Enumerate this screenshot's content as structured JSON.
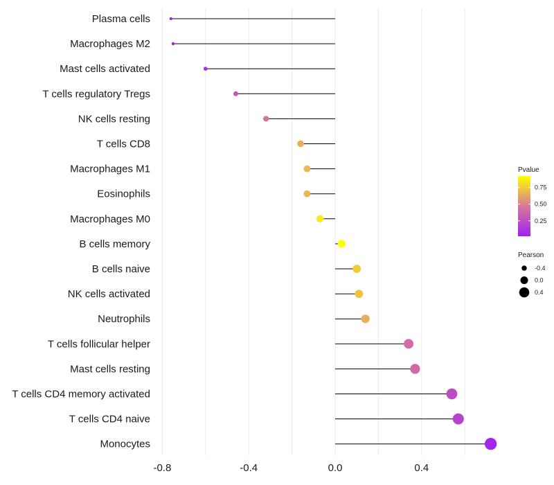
{
  "chart_data": {
    "type": "lollipop",
    "title": "",
    "xlabel": "",
    "ylabel": "",
    "xlim": [
      -0.8,
      0.72
    ],
    "x_ticks": [
      -0.8,
      -0.4,
      0.0,
      0.4
    ],
    "x_tick_labels": [
      "-0.8",
      "-0.4",
      "0.0",
      "0.4"
    ],
    "categories": [
      "Plasma cells",
      "Macrophages M2",
      "Mast cells activated",
      "T cells regulatory  Tregs",
      "NK cells resting",
      "T cells CD8",
      "Macrophages M1",
      "Eosinophils",
      "Macrophages M0",
      "B cells memory",
      "B cells naive",
      "NK cells activated",
      "Neutrophils",
      "T cells follicular helper",
      "Mast cells resting",
      "T cells CD4 memory activated",
      "T cells CD4 naive",
      "Monocytes"
    ],
    "pearson": [
      -0.76,
      -0.75,
      -0.6,
      -0.46,
      -0.32,
      -0.16,
      -0.13,
      -0.13,
      -0.07,
      0.03,
      0.1,
      0.11,
      0.14,
      0.34,
      0.37,
      0.54,
      0.57,
      0.72
    ],
    "pvalue": [
      0.02,
      0.03,
      0.1,
      0.3,
      0.45,
      0.65,
      0.68,
      0.68,
      0.85,
      0.92,
      0.75,
      0.72,
      0.65,
      0.42,
      0.4,
      0.25,
      0.2,
      0.05
    ],
    "legend": {
      "color_title": "Pvalue",
      "color_ticks": [
        0.25,
        0.5,
        0.75
      ],
      "color_tick_labels": [
        "0.25",
        "0.50",
        "0.75"
      ],
      "color_range": [
        0.02,
        0.92
      ],
      "color_low": "#a020f0",
      "color_mid": "#d8789a",
      "color_high": "#ffff00",
      "size_title": "Pearson",
      "size_values": [
        -0.4,
        0.0,
        0.4
      ],
      "size_labels": [
        "-0.4",
        "0.0",
        "0.4"
      ]
    },
    "colors": {
      "segment": "#000000",
      "grid": "#ebebeb"
    }
  }
}
